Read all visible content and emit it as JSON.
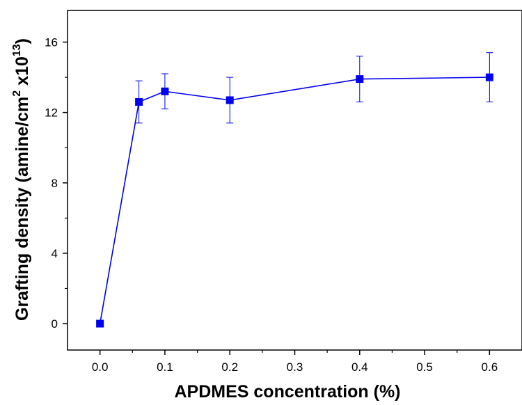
{
  "chart_data": {
    "type": "scatter",
    "title": "",
    "xlabel": "APDMES concentration (%)",
    "ylabel_parts": {
      "main": "Grafting density (amine/cm",
      "sup1": "2",
      "mid": " x10",
      "sup2": "13",
      "end": ")"
    },
    "xlim": [
      -0.05,
      0.65
    ],
    "ylim": [
      -1.5,
      17.8
    ],
    "x_ticks": [
      0.0,
      0.1,
      0.2,
      0.3,
      0.4,
      0.5,
      0.6
    ],
    "x_tick_labels": [
      "0.0",
      "0.1",
      "0.2",
      "0.3",
      "0.4",
      "0.5",
      "0.6"
    ],
    "y_ticks": [
      0,
      4,
      8,
      12,
      16
    ],
    "y_tick_labels": [
      "0",
      "4",
      "8",
      "12",
      "16"
    ],
    "grid": false,
    "legend": "none",
    "series": [
      {
        "color": "#0000ee",
        "marker": "square",
        "line": "solid",
        "points": [
          {
            "x": 0.0,
            "y": 0.0,
            "err_low": 0.0,
            "err_high": 0.0
          },
          {
            "x": 0.06,
            "y": 12.6,
            "err_low": 1.2,
            "err_high": 1.2
          },
          {
            "x": 0.1,
            "y": 13.2,
            "err_low": 1.0,
            "err_high": 1.0
          },
          {
            "x": 0.2,
            "y": 12.7,
            "err_low": 1.3,
            "err_high": 1.3
          },
          {
            "x": 0.4,
            "y": 13.9,
            "err_low": 1.3,
            "err_high": 1.3
          },
          {
            "x": 0.6,
            "y": 14.0,
            "err_low": 1.4,
            "err_high": 1.4
          }
        ]
      }
    ]
  }
}
